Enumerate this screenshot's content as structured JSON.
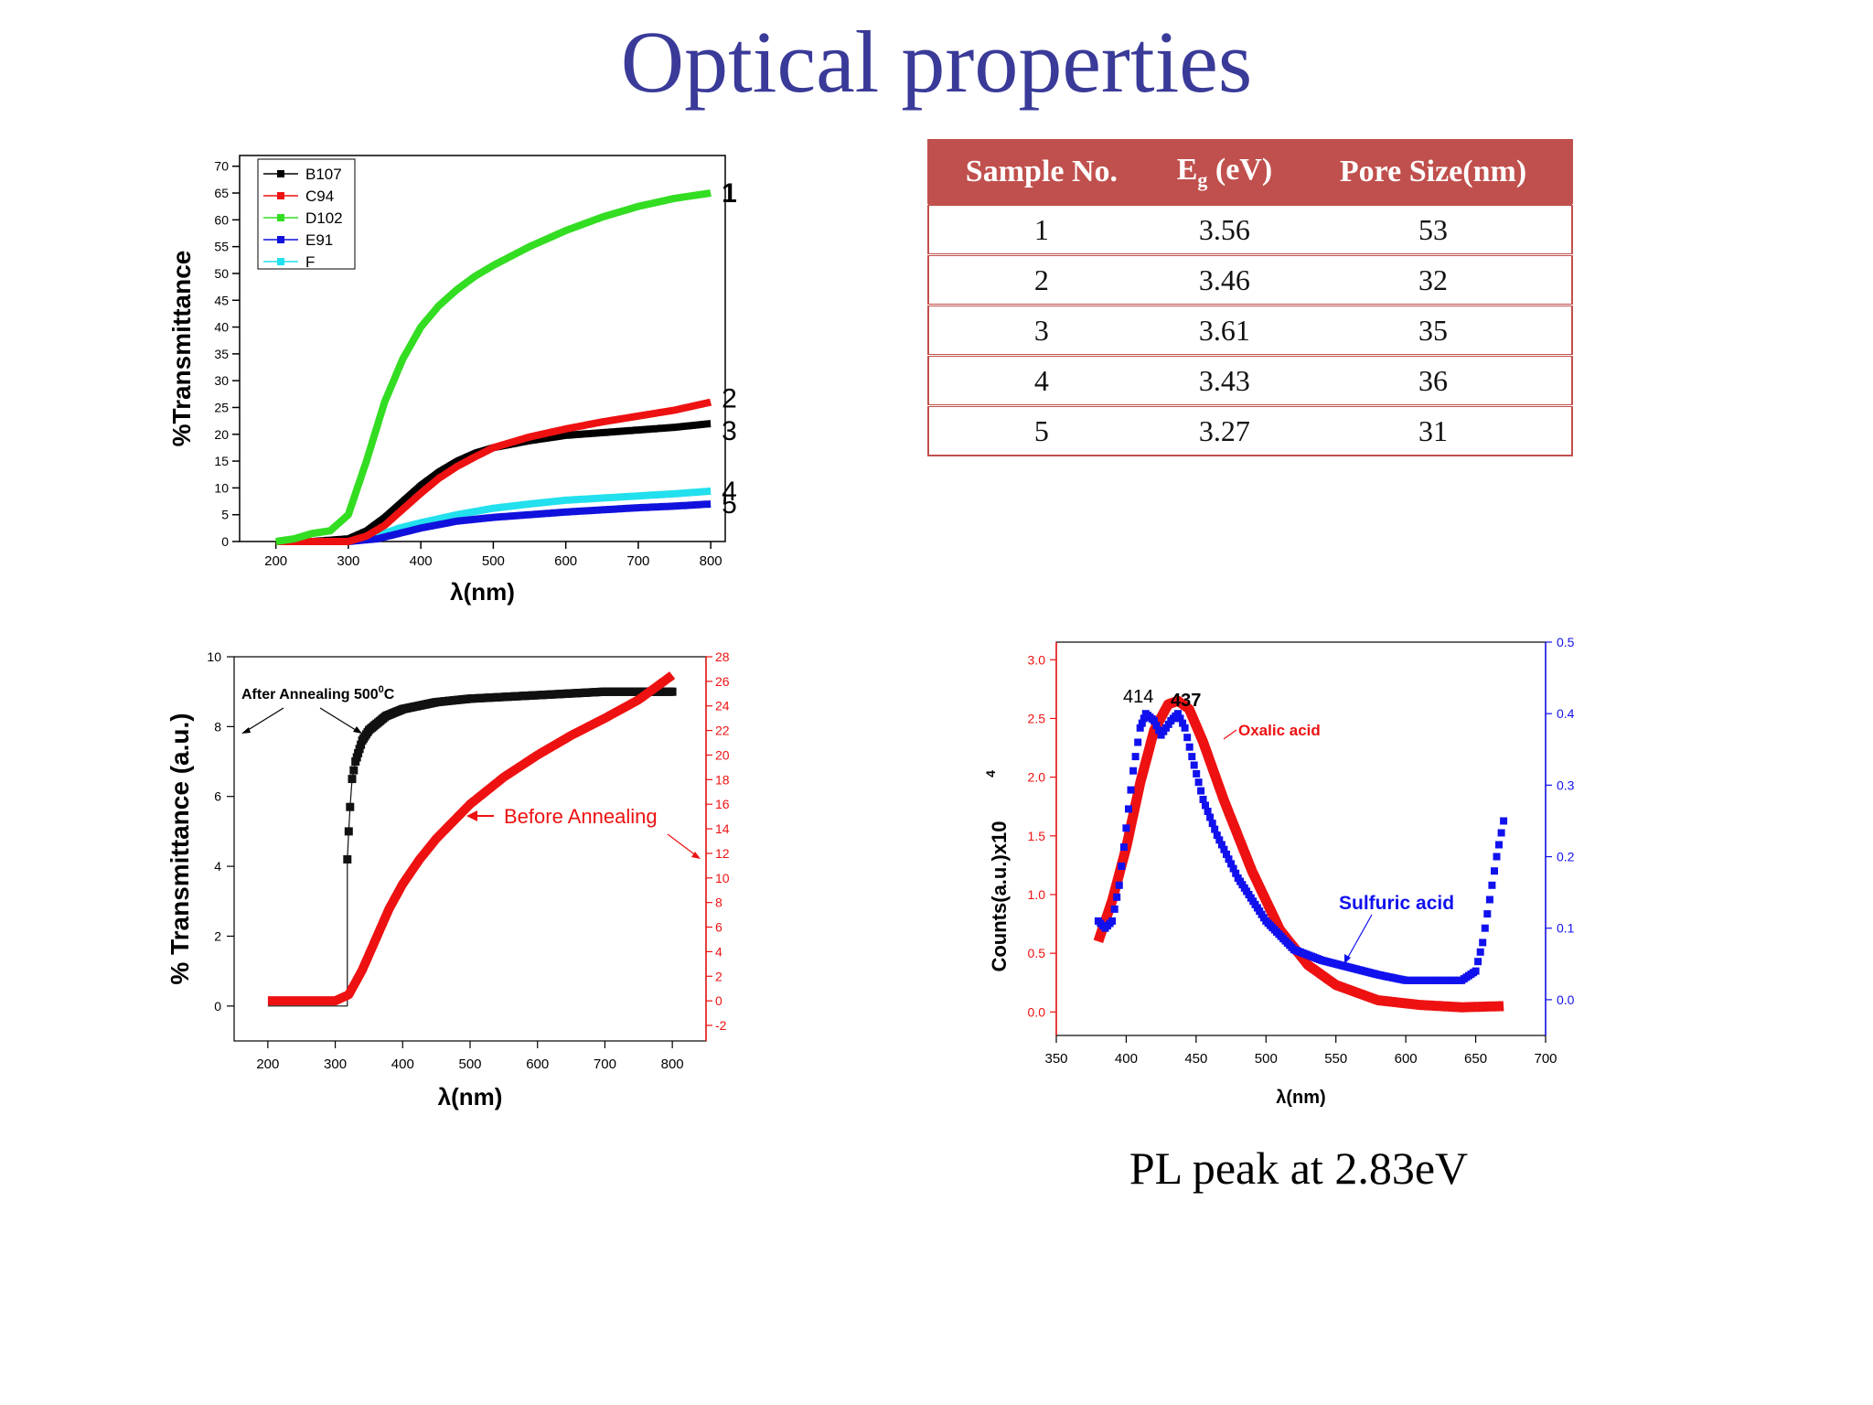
{
  "title": "Optical properties",
  "table": {
    "headers": {
      "sample": "Sample No.",
      "eg_main": "E",
      "eg_sub": "g",
      "eg_unit": " (eV)",
      "pore": "Pore Size(nm)"
    },
    "rows": [
      {
        "sample": "1",
        "eg": "3.56",
        "pore": "53"
      },
      {
        "sample": "2",
        "eg": "3.46",
        "pore": "32"
      },
      {
        "sample": "3",
        "eg": "3.61",
        "pore": "35"
      },
      {
        "sample": "4",
        "eg": "3.43",
        "pore": "36"
      },
      {
        "sample": "5",
        "eg": "3.27",
        "pore": "31"
      }
    ]
  },
  "pl_caption": "PL  peak at 2.83eV",
  "chart_data": [
    {
      "type": "line",
      "xlabel": "λ(nm)",
      "ylabel": "%Transmittance",
      "xlim": [
        150,
        820
      ],
      "ylim": [
        0,
        72
      ],
      "xticks": [
        200,
        300,
        400,
        500,
        600,
        700,
        800
      ],
      "yticks": [
        0,
        5,
        10,
        15,
        20,
        25,
        30,
        35,
        40,
        45,
        50,
        55,
        60,
        65,
        70
      ],
      "legend_position": "top-left",
      "series": [
        {
          "name": "B107",
          "color": "#000000",
          "end_label": "3",
          "x": [
            200,
            250,
            300,
            325,
            350,
            375,
            400,
            425,
            450,
            475,
            500,
            550,
            600,
            650,
            700,
            750,
            800
          ],
          "y": [
            0,
            0,
            0.5,
            2,
            4.5,
            7.5,
            10.5,
            13,
            15,
            16.5,
            17.5,
            18.8,
            19.8,
            20.3,
            20.8,
            21.3,
            22
          ]
        },
        {
          "name": "C94",
          "color": "#ee1111",
          "end_label": "2",
          "x": [
            200,
            250,
            300,
            325,
            350,
            375,
            400,
            425,
            450,
            475,
            500,
            550,
            600,
            650,
            700,
            750,
            800
          ],
          "y": [
            0,
            0,
            0,
            1,
            3,
            6,
            9,
            11.8,
            14,
            15.8,
            17.5,
            19.5,
            21,
            22.3,
            23.4,
            24.5,
            26
          ]
        },
        {
          "name": "D102",
          "color": "#33dd22",
          "end_label": "1",
          "x": [
            200,
            225,
            250,
            275,
            300,
            325,
            350,
            375,
            400,
            425,
            450,
            475,
            500,
            550,
            600,
            650,
            700,
            750,
            800
          ],
          "y": [
            0,
            0.5,
            1.5,
            2,
            5,
            15,
            26,
            34,
            40,
            44,
            47,
            49.5,
            51.5,
            55,
            58,
            60.5,
            62.5,
            64,
            65
          ]
        },
        {
          "name": "E91",
          "color": "#1111dd",
          "end_label": "5",
          "x": [
            200,
            300,
            340,
            370,
            400,
            450,
            500,
            550,
            600,
            650,
            700,
            750,
            800
          ],
          "y": [
            0,
            0,
            0.5,
            1.5,
            2.5,
            3.8,
            4.5,
            5,
            5.5,
            5.9,
            6.3,
            6.6,
            7
          ]
        },
        {
          "name": "F",
          "color": "#22e0ee",
          "end_label": "4",
          "x": [
            200,
            300,
            340,
            370,
            400,
            450,
            500,
            550,
            600,
            650,
            700,
            750,
            800
          ],
          "y": [
            0,
            0,
            1,
            2.5,
            3.5,
            5,
            6.2,
            7,
            7.7,
            8.1,
            8.5,
            8.9,
            9.4
          ]
        }
      ]
    },
    {
      "type": "line",
      "xlabel": "λ(nm)",
      "ylabel": "% Transmittance (a.u.)",
      "xlim": [
        150,
        850
      ],
      "ylim": [
        -1,
        10
      ],
      "y2lim": [
        -2,
        28
      ],
      "xticks": [
        200,
        300,
        400,
        500,
        600,
        700,
        800
      ],
      "yticks": [
        0,
        2,
        4,
        6,
        8,
        10
      ],
      "y2ticks": [
        -2,
        0,
        2,
        4,
        6,
        8,
        10,
        12,
        14,
        16,
        18,
        20,
        22,
        24,
        26,
        28
      ],
      "annotations": [
        "After Annealing 500",
        "0",
        "C",
        "Before Annealing"
      ],
      "series": [
        {
          "label": "After Annealing",
          "axis": "left",
          "color": "#111111",
          "x": [
            200,
            250,
            300,
            318,
            318,
            320,
            322,
            325,
            330,
            340,
            350,
            375,
            400,
            450,
            500,
            550,
            600,
            650,
            700,
            750,
            800
          ],
          "y": [
            0,
            0,
            0,
            0,
            4.2,
            5.0,
            5.7,
            6.5,
            7.0,
            7.6,
            7.9,
            8.3,
            8.5,
            8.7,
            8.8,
            8.85,
            8.9,
            8.95,
            9.0,
            9.0,
            9.0
          ]
        },
        {
          "label": "Before Annealing",
          "axis": "right",
          "color": "#ee1111",
          "x": [
            200,
            250,
            300,
            320,
            340,
            360,
            380,
            400,
            425,
            450,
            475,
            500,
            550,
            600,
            650,
            700,
            750,
            800
          ],
          "y": [
            0,
            0,
            0,
            0.5,
            2.5,
            5,
            7.5,
            9.5,
            11.5,
            13.2,
            14.6,
            16,
            18.2,
            20,
            21.6,
            23,
            24.5,
            26.5
          ]
        }
      ]
    },
    {
      "type": "line",
      "xlabel": "λ(nm)",
      "ylabel": "Counts(a.u.)x10",
      "ylabel_exponent": "4",
      "xlim": [
        350,
        700
      ],
      "ylim": [
        -0.2,
        3.15
      ],
      "y2lim": [
        -0.05,
        0.5
      ],
      "xticks": [
        350,
        400,
        450,
        500,
        550,
        600,
        650,
        700
      ],
      "yticks": [
        0.0,
        0.5,
        1.0,
        1.5,
        2.0,
        2.5,
        3.0
      ],
      "y2ticks": [
        0.0,
        0.1,
        0.2,
        0.3,
        0.4,
        0.5
      ],
      "peak_labels": [
        "414",
        "437"
      ],
      "series": [
        {
          "name": "Oxalic acid",
          "axis": "left",
          "color": "#ee1111",
          "x": [
            380,
            390,
            400,
            410,
            420,
            430,
            437,
            445,
            455,
            470,
            490,
            510,
            530,
            550,
            580,
            610,
            640,
            670
          ],
          "y": [
            0.6,
            0.95,
            1.4,
            1.95,
            2.4,
            2.62,
            2.65,
            2.58,
            2.3,
            1.8,
            1.2,
            0.7,
            0.4,
            0.23,
            0.1,
            0.06,
            0.04,
            0.05
          ]
        },
        {
          "name": "Sulfuric acid",
          "axis": "right",
          "color": "#1111ee",
          "x": [
            380,
            385,
            390,
            395,
            400,
            405,
            410,
            414,
            420,
            425,
            432,
            437,
            442,
            447,
            455,
            465,
            480,
            500,
            520,
            540,
            560,
            580,
            600,
            620,
            640,
            650,
            655,
            660,
            665,
            670
          ],
          "y": [
            0.11,
            0.1,
            0.11,
            0.16,
            0.24,
            0.32,
            0.38,
            0.4,
            0.39,
            0.37,
            0.39,
            0.4,
            0.38,
            0.34,
            0.28,
            0.23,
            0.17,
            0.11,
            0.07,
            0.055,
            0.045,
            0.035,
            0.027,
            0.027,
            0.027,
            0.04,
            0.08,
            0.14,
            0.2,
            0.25
          ]
        }
      ]
    }
  ]
}
